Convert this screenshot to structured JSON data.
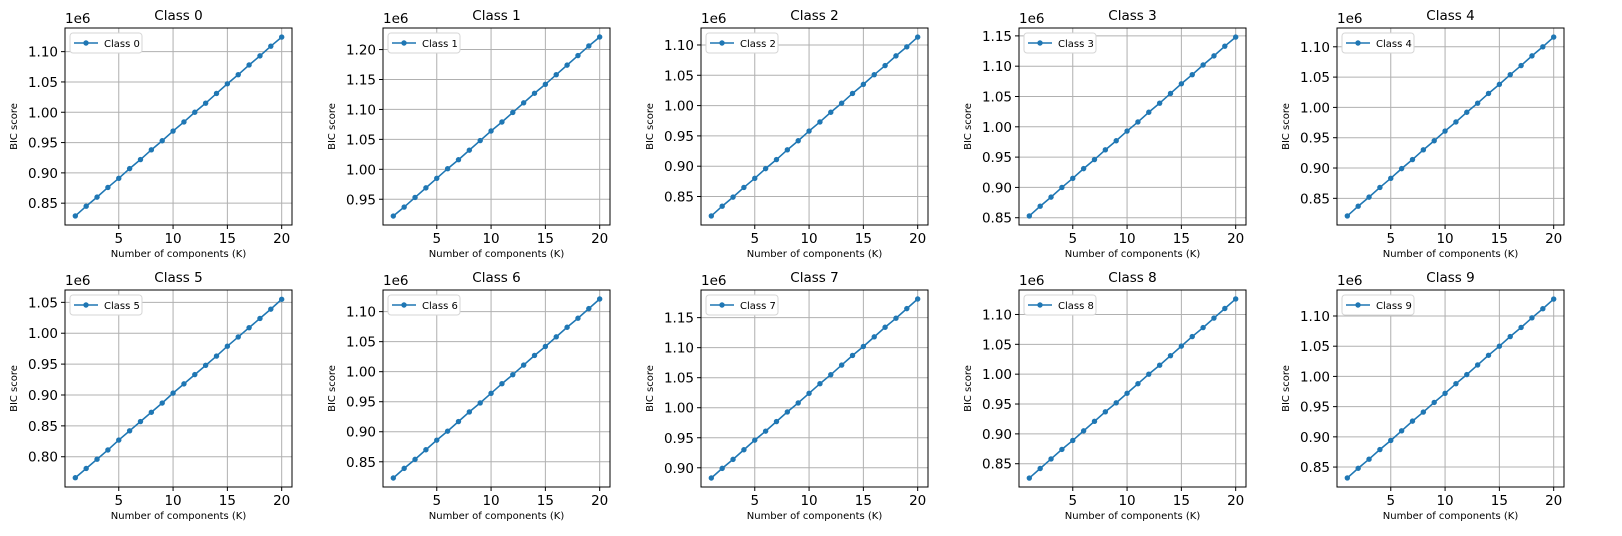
{
  "chart_data": [
    {
      "type": "line",
      "title": "Class 0",
      "xlabel": "Number of components (K)",
      "ylabel": "BIC score",
      "offset_text": "1e6",
      "x": [
        1,
        2,
        3,
        4,
        5,
        6,
        7,
        8,
        9,
        10,
        11,
        12,
        13,
        14,
        15,
        16,
        17,
        18,
        19,
        20
      ],
      "series": [
        {
          "name": "Class 0",
          "values": [
            0.829,
            0.845,
            0.86,
            0.876,
            0.891,
            0.907,
            0.922,
            0.938,
            0.953,
            0.969,
            0.984,
            1.0,
            1.015,
            1.031,
            1.047,
            1.062,
            1.078,
            1.093,
            1.109,
            1.124
          ]
        }
      ],
      "xticks": [
        5,
        10,
        15,
        20
      ],
      "xticklabels": [
        "5",
        "10",
        "15",
        "20"
      ],
      "yticks": [
        0.85,
        0.9,
        0.95,
        1.0,
        1.05,
        1.1
      ],
      "yticklabels": [
        "0.85",
        "0.90",
        "0.95",
        "1.00",
        "1.05",
        "1.10"
      ],
      "xlim": [
        0.05,
        20.95
      ],
      "ylim": [
        0.814,
        1.139
      ],
      "legend": "upper-left",
      "grid": true,
      "color": "#1f77b4"
    },
    {
      "type": "line",
      "title": "Class 1",
      "xlabel": "Number of components (K)",
      "ylabel": "BIC score",
      "offset_text": "1e6",
      "x": [
        1,
        2,
        3,
        4,
        5,
        6,
        7,
        8,
        9,
        10,
        11,
        12,
        13,
        14,
        15,
        16,
        17,
        18,
        19,
        20
      ],
      "series": [
        {
          "name": "Class 1",
          "values": [
            0.922,
            0.937,
            0.953,
            0.969,
            0.985,
            1.001,
            1.016,
            1.032,
            1.048,
            1.064,
            1.079,
            1.095,
            1.111,
            1.127,
            1.142,
            1.158,
            1.174,
            1.19,
            1.206,
            1.221
          ]
        }
      ],
      "xticks": [
        5,
        10,
        15,
        20
      ],
      "xticklabels": [
        "5",
        "10",
        "15",
        "20"
      ],
      "yticks": [
        0.95,
        1.0,
        1.05,
        1.1,
        1.15,
        1.2
      ],
      "yticklabels": [
        "0.95",
        "1.00",
        "1.05",
        "1.10",
        "1.15",
        "1.20"
      ],
      "xlim": [
        0.05,
        20.95
      ],
      "ylim": [
        0.907,
        1.236
      ],
      "legend": "upper-left",
      "grid": true,
      "color": "#1f77b4"
    },
    {
      "type": "line",
      "title": "Class 2",
      "xlabel": "Number of components (K)",
      "ylabel": "BIC score",
      "offset_text": "1e6",
      "x": [
        1,
        2,
        3,
        4,
        5,
        6,
        7,
        8,
        9,
        10,
        11,
        12,
        13,
        14,
        15,
        16,
        17,
        18,
        19,
        20
      ],
      "series": [
        {
          "name": "Class 2",
          "values": [
            0.818,
            0.834,
            0.849,
            0.865,
            0.88,
            0.896,
            0.911,
            0.927,
            0.942,
            0.958,
            0.973,
            0.989,
            1.004,
            1.02,
            1.035,
            1.051,
            1.066,
            1.082,
            1.097,
            1.113
          ]
        }
      ],
      "xticks": [
        5,
        10,
        15,
        20
      ],
      "xticklabels": [
        "5",
        "10",
        "15",
        "20"
      ],
      "yticks": [
        0.85,
        0.9,
        0.95,
        1.0,
        1.05,
        1.1
      ],
      "yticklabels": [
        "0.85",
        "0.90",
        "0.95",
        "1.00",
        "1.05",
        "1.10"
      ],
      "xlim": [
        0.05,
        20.95
      ],
      "ylim": [
        0.803,
        1.128
      ],
      "legend": "upper-left",
      "grid": true,
      "color": "#1f77b4"
    },
    {
      "type": "line",
      "title": "Class 3",
      "xlabel": "Number of components (K)",
      "ylabel": "BIC score",
      "offset_text": "1e6",
      "x": [
        1,
        2,
        3,
        4,
        5,
        6,
        7,
        8,
        9,
        10,
        11,
        12,
        13,
        14,
        15,
        16,
        17,
        18,
        19,
        20
      ],
      "series": [
        {
          "name": "Class 3",
          "values": [
            0.853,
            0.869,
            0.884,
            0.9,
            0.915,
            0.931,
            0.946,
            0.962,
            0.977,
            0.993,
            1.008,
            1.024,
            1.039,
            1.055,
            1.071,
            1.086,
            1.102,
            1.117,
            1.133,
            1.148
          ]
        }
      ],
      "xticks": [
        5,
        10,
        15,
        20
      ],
      "xticklabels": [
        "5",
        "10",
        "15",
        "20"
      ],
      "yticks": [
        0.85,
        0.9,
        0.95,
        1.0,
        1.05,
        1.1,
        1.15
      ],
      "yticklabels": [
        "0.85",
        "0.90",
        "0.95",
        "1.00",
        "1.05",
        "1.10",
        "1.15"
      ],
      "xlim": [
        0.05,
        20.95
      ],
      "ylim": [
        0.838,
        1.163
      ],
      "legend": "upper-left",
      "grid": true,
      "color": "#1f77b4"
    },
    {
      "type": "line",
      "title": "Class 4",
      "xlabel": "Number of components (K)",
      "ylabel": "BIC score",
      "offset_text": "1e6",
      "x": [
        1,
        2,
        3,
        4,
        5,
        6,
        7,
        8,
        9,
        10,
        11,
        12,
        13,
        14,
        15,
        16,
        17,
        18,
        19,
        20
      ],
      "series": [
        {
          "name": "Class 4",
          "values": [
            0.821,
            0.837,
            0.852,
            0.868,
            0.883,
            0.899,
            0.914,
            0.93,
            0.945,
            0.961,
            0.976,
            0.992,
            1.007,
            1.023,
            1.038,
            1.054,
            1.069,
            1.085,
            1.1,
            1.116
          ]
        }
      ],
      "xticks": [
        5,
        10,
        15,
        20
      ],
      "xticklabels": [
        "5",
        "10",
        "15",
        "20"
      ],
      "yticks": [
        0.85,
        0.9,
        0.95,
        1.0,
        1.05,
        1.1
      ],
      "yticklabels": [
        "0.85",
        "0.90",
        "0.95",
        "1.00",
        "1.05",
        "1.10"
      ],
      "xlim": [
        0.05,
        20.95
      ],
      "ylim": [
        0.806,
        1.131
      ],
      "legend": "upper-left",
      "grid": true,
      "color": "#1f77b4"
    },
    {
      "type": "line",
      "title": "Class 5",
      "xlabel": "Number of components (K)",
      "ylabel": "BIC score",
      "offset_text": "1e6",
      "x": [
        1,
        2,
        3,
        4,
        5,
        6,
        7,
        8,
        9,
        10,
        11,
        12,
        13,
        14,
        15,
        16,
        17,
        18,
        19,
        20
      ],
      "series": [
        {
          "name": "Class 5",
          "values": [
            0.766,
            0.781,
            0.796,
            0.811,
            0.827,
            0.842,
            0.857,
            0.872,
            0.887,
            0.903,
            0.918,
            0.933,
            0.948,
            0.963,
            0.979,
            0.994,
            1.009,
            1.024,
            1.039,
            1.055
          ]
        }
      ],
      "xticks": [
        5,
        10,
        15,
        20
      ],
      "xticklabels": [
        "5",
        "10",
        "15",
        "20"
      ],
      "yticks": [
        0.8,
        0.85,
        0.9,
        0.95,
        1.0,
        1.05
      ],
      "yticklabels": [
        "0.80",
        "0.85",
        "0.90",
        "0.95",
        "1.00",
        "1.05"
      ],
      "xlim": [
        0.05,
        20.95
      ],
      "ylim": [
        0.751,
        1.07
      ],
      "legend": "upper-left",
      "grid": true,
      "color": "#1f77b4"
    },
    {
      "type": "line",
      "title": "Class 6",
      "xlabel": "Number of components (K)",
      "ylabel": "BIC score",
      "offset_text": "1e6",
      "x": [
        1,
        2,
        3,
        4,
        5,
        6,
        7,
        8,
        9,
        10,
        11,
        12,
        13,
        14,
        15,
        16,
        17,
        18,
        19,
        20
      ],
      "series": [
        {
          "name": "Class 6",
          "values": [
            0.823,
            0.839,
            0.854,
            0.87,
            0.886,
            0.901,
            0.917,
            0.933,
            0.948,
            0.964,
            0.98,
            0.995,
            1.011,
            1.027,
            1.042,
            1.058,
            1.074,
            1.089,
            1.105,
            1.121
          ]
        }
      ],
      "xticks": [
        5,
        10,
        15,
        20
      ],
      "xticklabels": [
        "5",
        "10",
        "15",
        "20"
      ],
      "yticks": [
        0.85,
        0.9,
        0.95,
        1.0,
        1.05,
        1.1
      ],
      "yticklabels": [
        "0.85",
        "0.90",
        "0.95",
        "1.00",
        "1.05",
        "1.10"
      ],
      "xlim": [
        0.05,
        20.95
      ],
      "ylim": [
        0.808,
        1.136
      ],
      "legend": "upper-left",
      "grid": true,
      "color": "#1f77b4"
    },
    {
      "type": "line",
      "title": "Class 7",
      "xlabel": "Number of components (K)",
      "ylabel": "BIC score",
      "offset_text": "1e6",
      "x": [
        1,
        2,
        3,
        4,
        5,
        6,
        7,
        8,
        9,
        10,
        11,
        12,
        13,
        14,
        15,
        16,
        17,
        18,
        19,
        20
      ],
      "series": [
        {
          "name": "Class 7",
          "values": [
            0.883,
            0.899,
            0.914,
            0.93,
            0.946,
            0.961,
            0.977,
            0.993,
            1.008,
            1.024,
            1.04,
            1.055,
            1.071,
            1.087,
            1.102,
            1.118,
            1.134,
            1.149,
            1.165,
            1.181
          ]
        }
      ],
      "xticks": [
        5,
        10,
        15,
        20
      ],
      "xticklabels": [
        "5",
        "10",
        "15",
        "20"
      ],
      "yticks": [
        0.9,
        0.95,
        1.0,
        1.05,
        1.1,
        1.15
      ],
      "yticklabels": [
        "0.90",
        "0.95",
        "1.00",
        "1.05",
        "1.10",
        "1.15"
      ],
      "xlim": [
        0.05,
        20.95
      ],
      "ylim": [
        0.868,
        1.196
      ],
      "legend": "upper-left",
      "grid": true,
      "color": "#1f77b4"
    },
    {
      "type": "line",
      "title": "Class 8",
      "xlabel": "Number of components (K)",
      "ylabel": "BIC score",
      "offset_text": "1e6",
      "x": [
        1,
        2,
        3,
        4,
        5,
        6,
        7,
        8,
        9,
        10,
        11,
        12,
        13,
        14,
        15,
        16,
        17,
        18,
        19,
        20
      ],
      "series": [
        {
          "name": "Class 8",
          "values": [
            0.826,
            0.842,
            0.858,
            0.874,
            0.889,
            0.905,
            0.921,
            0.937,
            0.952,
            0.968,
            0.984,
            1.0,
            1.015,
            1.031,
            1.047,
            1.063,
            1.078,
            1.094,
            1.11,
            1.126
          ]
        }
      ],
      "xticks": [
        5,
        10,
        15,
        20
      ],
      "xticklabels": [
        "5",
        "10",
        "15",
        "20"
      ],
      "yticks": [
        0.85,
        0.9,
        0.95,
        1.0,
        1.05,
        1.1
      ],
      "yticklabels": [
        "0.85",
        "0.90",
        "0.95",
        "1.00",
        "1.05",
        "1.10"
      ],
      "xlim": [
        0.05,
        20.95
      ],
      "ylim": [
        0.811,
        1.141
      ],
      "legend": "upper-left",
      "grid": true,
      "color": "#1f77b4"
    },
    {
      "type": "line",
      "title": "Class 9",
      "xlabel": "Number of components (K)",
      "ylabel": "BIC score",
      "offset_text": "1e6",
      "x": [
        1,
        2,
        3,
        4,
        5,
        6,
        7,
        8,
        9,
        10,
        11,
        12,
        13,
        14,
        15,
        16,
        17,
        18,
        19,
        20
      ],
      "series": [
        {
          "name": "Class 9",
          "values": [
            0.832,
            0.848,
            0.863,
            0.879,
            0.894,
            0.91,
            0.926,
            0.941,
            0.957,
            0.972,
            0.988,
            1.003,
            1.019,
            1.035,
            1.05,
            1.066,
            1.081,
            1.097,
            1.112,
            1.128
          ]
        }
      ],
      "xticks": [
        5,
        10,
        15,
        20
      ],
      "xticklabels": [
        "5",
        "10",
        "15",
        "20"
      ],
      "yticks": [
        0.85,
        0.9,
        0.95,
        1.0,
        1.05,
        1.1
      ],
      "yticklabels": [
        "0.85",
        "0.90",
        "0.95",
        "1.00",
        "1.05",
        "1.10"
      ],
      "xlim": [
        0.05,
        20.95
      ],
      "ylim": [
        0.817,
        1.143
      ],
      "legend": "upper-left",
      "grid": true,
      "color": "#1f77b4"
    }
  ]
}
